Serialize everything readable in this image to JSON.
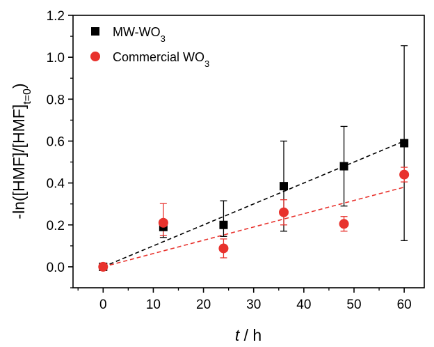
{
  "chart_data": {
    "type": "scatter",
    "xlabel": {
      "italic": "t",
      "rest": " / h"
    },
    "ylabel": {
      "main": "-ln([HMF]/[HMF]",
      "sub": "t=0",
      "end": ")"
    },
    "xlim": [
      -6,
      64
    ],
    "ylim": [
      -0.1,
      1.2
    ],
    "xticks": [
      0,
      10,
      20,
      30,
      40,
      50,
      60
    ],
    "yticks": [
      0.0,
      0.2,
      0.4,
      0.6,
      0.8,
      1.0,
      1.2
    ],
    "ytick_labels": [
      "0.0",
      "0.2",
      "0.4",
      "0.6",
      "0.8",
      "1.0",
      "1.2"
    ],
    "legend_placement": "top-left",
    "series": [
      {
        "name": {
          "main": "MW-WO",
          "sub": "3"
        },
        "marker": "square",
        "color": "#000000",
        "x": [
          0,
          12,
          24,
          36,
          48,
          60
        ],
        "y": [
          0.0,
          0.19,
          0.2,
          0.385,
          0.48,
          0.59
        ],
        "err_low": [
          0.0,
          0.05,
          0.055,
          0.215,
          0.19,
          0.465
        ],
        "err_high": [
          0.0,
          0.035,
          0.115,
          0.215,
          0.19,
          0.465
        ],
        "fit": {
          "x": [
            0,
            60
          ],
          "y": [
            0.0,
            0.6
          ]
        }
      },
      {
        "name": {
          "main": "Commercial WO",
          "sub": "3"
        },
        "marker": "circle",
        "color": "#e8322d",
        "x": [
          0,
          12,
          24,
          36,
          48,
          60
        ],
        "y": [
          0.0,
          0.21,
          0.088,
          0.26,
          0.205,
          0.44
        ],
        "err_low": [
          0.0,
          0.06,
          0.045,
          0.06,
          0.035,
          0.035
        ],
        "err_high": [
          0.0,
          0.092,
          0.045,
          0.06,
          0.035,
          0.035
        ],
        "fit": {
          "x": [
            0,
            60
          ],
          "y": [
            0.0,
            0.38
          ]
        }
      }
    ]
  }
}
